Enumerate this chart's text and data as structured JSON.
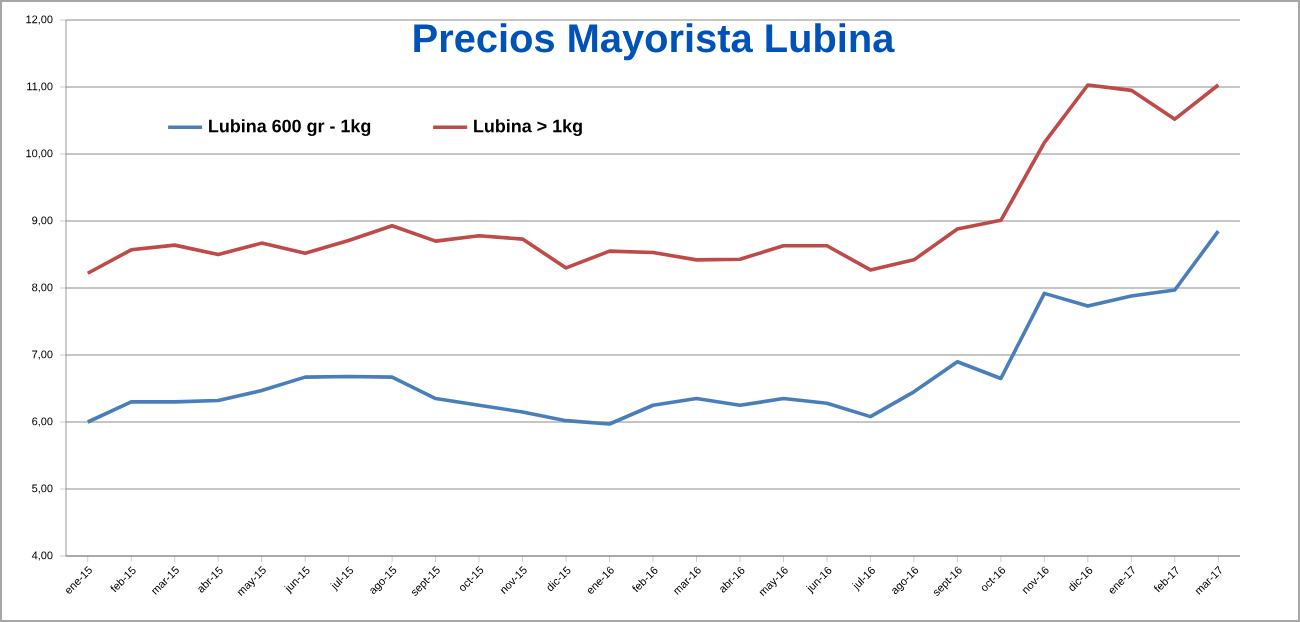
{
  "chart_data": {
    "type": "line",
    "title": "Precios Mayorista Lubina",
    "categories": [
      "ene-15",
      "feb-15",
      "mar-15",
      "abr-15",
      "may-15",
      "jun-15",
      "jul-15",
      "ago-15",
      "sept-15",
      "oct-15",
      "nov-15",
      "dic-15",
      "ene-16",
      "feb-16",
      "mar-16",
      "abr-16",
      "may-16",
      "jun-16",
      "jul-16",
      "ago-16",
      "sept-16",
      "oct-16",
      "nov-16",
      "dic-16",
      "ene-17",
      "feb-17",
      "mar-17"
    ],
    "series": [
      {
        "name": "Lubina 600 gr - 1kg",
        "color": "#4a7ebb",
        "values": [
          6.0,
          6.3,
          6.3,
          6.32,
          6.47,
          6.67,
          6.68,
          6.67,
          6.35,
          6.25,
          6.15,
          6.02,
          5.97,
          6.25,
          6.35,
          6.25,
          6.35,
          6.28,
          6.08,
          6.45,
          6.9,
          6.65,
          7.92,
          7.73,
          7.88,
          7.97,
          8.85
        ]
      },
      {
        "name": "Lubina > 1kg",
        "color": "#be4b48",
        "values": [
          8.22,
          8.57,
          8.64,
          8.5,
          8.67,
          8.52,
          8.71,
          8.93,
          8.7,
          8.78,
          8.73,
          8.3,
          8.55,
          8.53,
          8.42,
          8.43,
          8.63,
          8.63,
          8.27,
          8.42,
          8.88,
          9.01,
          10.17,
          11.03,
          10.95,
          10.52,
          11.03
        ]
      }
    ],
    "ylim": [
      4,
      12
    ],
    "yticks": [
      {
        "value": 4,
        "label": "4,00"
      },
      {
        "value": 5,
        "label": "5,00"
      },
      {
        "value": 6,
        "label": "6,00"
      },
      {
        "value": 7,
        "label": "7,00"
      },
      {
        "value": 8,
        "label": "8,00"
      },
      {
        "value": 9,
        "label": "9,00"
      },
      {
        "value": 10,
        "label": "10,00"
      },
      {
        "value": 11,
        "label": "11,00"
      },
      {
        "value": 12,
        "label": "12,00"
      }
    ],
    "grid": "y",
    "legend": "top left",
    "marker": "none",
    "line_style": "solid"
  }
}
